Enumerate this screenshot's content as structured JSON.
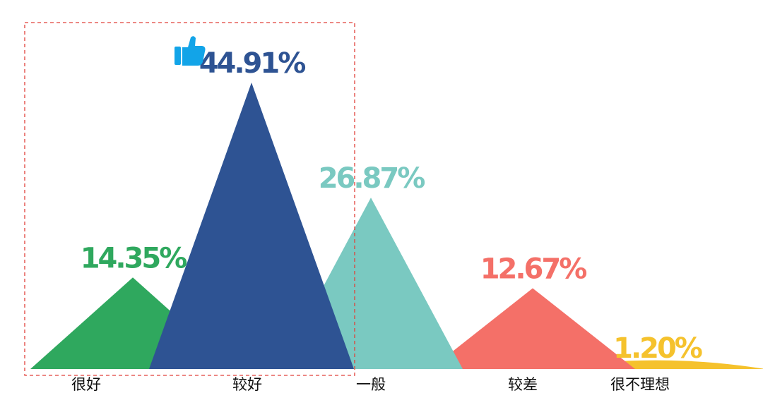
{
  "chart_data": {
    "type": "area",
    "shape": "triangle-peaks",
    "categories": [
      "很好",
      "较好",
      "一般",
      "较差",
      "很不理想"
    ],
    "values": [
      14.35,
      44.91,
      26.87,
      12.67,
      1.2
    ],
    "value_labels": [
      "14.35%",
      "44.91%",
      "26.87%",
      "12.67%",
      "1.20%"
    ],
    "unit": "%",
    "ylim": [
      0,
      50
    ],
    "colors": [
      "#2fa85e",
      "#2e5393",
      "#7ac9c1",
      "#f47068",
      "#f5c22d"
    ],
    "highlight": {
      "categories": [
        "很好",
        "较好"
      ],
      "style": "dashed-box",
      "color": "#e0403a",
      "icon": "thumbs-up-icon",
      "icon_color": "#12a4e8"
    },
    "grid": false,
    "legend": "none"
  }
}
